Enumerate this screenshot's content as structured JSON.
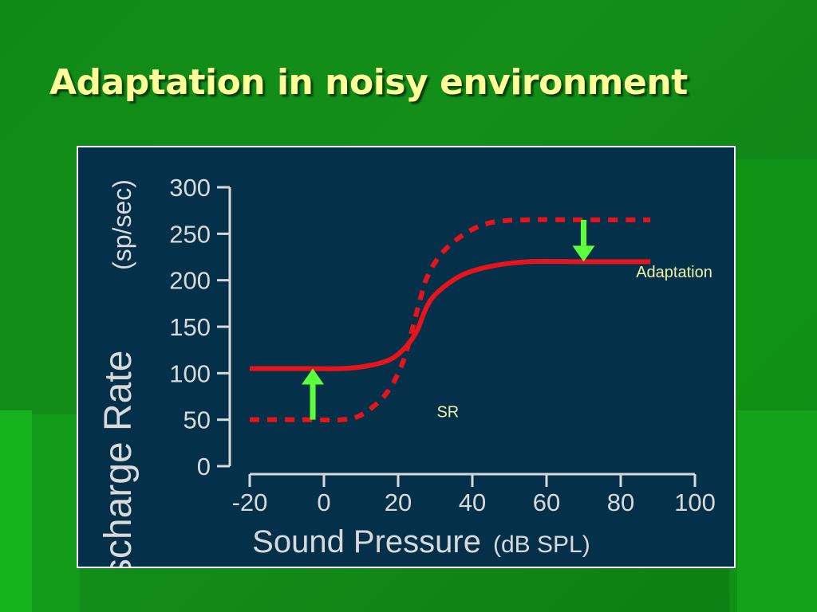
{
  "slide": {
    "title": "Adaptation in noisy environment"
  },
  "chart_data": {
    "type": "line",
    "ylabel_main": "Discharge Rate",
    "ylabel_unit": "(sp/sec)",
    "xlabel_main": "Sound Pressure",
    "xlabel_unit": "(dB SPL)",
    "xlim": [
      -20,
      100
    ],
    "ylim": [
      0,
      300
    ],
    "x_ticks": [
      -20,
      0,
      20,
      40,
      60,
      80,
      100
    ],
    "y_ticks": [
      0,
      50,
      100,
      150,
      200,
      250,
      300
    ],
    "series": [
      {
        "style": "dashed",
        "color": "#e8141c",
        "points": [
          [
            -20,
            50
          ],
          [
            -5,
            50
          ],
          [
            5,
            50
          ],
          [
            10,
            55
          ],
          [
            15,
            70
          ],
          [
            18,
            85
          ],
          [
            20,
            100
          ],
          [
            22,
            120
          ],
          [
            24,
            150
          ],
          [
            26,
            180
          ],
          [
            28,
            205
          ],
          [
            32,
            230
          ],
          [
            38,
            250
          ],
          [
            45,
            262
          ],
          [
            55,
            265
          ],
          [
            70,
            265
          ],
          [
            88,
            265
          ]
        ]
      },
      {
        "style": "solid",
        "color": "#e8141c",
        "points": [
          [
            -20,
            105
          ],
          [
            -5,
            105
          ],
          [
            5,
            105
          ],
          [
            12,
            108
          ],
          [
            18,
            115
          ],
          [
            22,
            128
          ],
          [
            25,
            145
          ],
          [
            27,
            165
          ],
          [
            29,
            180
          ],
          [
            33,
            195
          ],
          [
            38,
            207
          ],
          [
            45,
            215
          ],
          [
            55,
            220
          ],
          [
            70,
            220
          ],
          [
            88,
            220
          ]
        ]
      }
    ],
    "arrows": [
      {
        "x": -3,
        "from": 50,
        "to": 105,
        "color": "#5cff3c"
      },
      {
        "x": 70,
        "from": 265,
        "to": 220,
        "color": "#5cff3c"
      }
    ],
    "annotations": [
      {
        "text": "SR",
        "x": 33,
        "y": 50
      },
      {
        "text": "Adaptation",
        "x": 88,
        "y": 210
      }
    ],
    "colors": {
      "label": "#f2f2a6",
      "axis": "#d9d9d9",
      "plot_bg": "#05304a"
    }
  }
}
